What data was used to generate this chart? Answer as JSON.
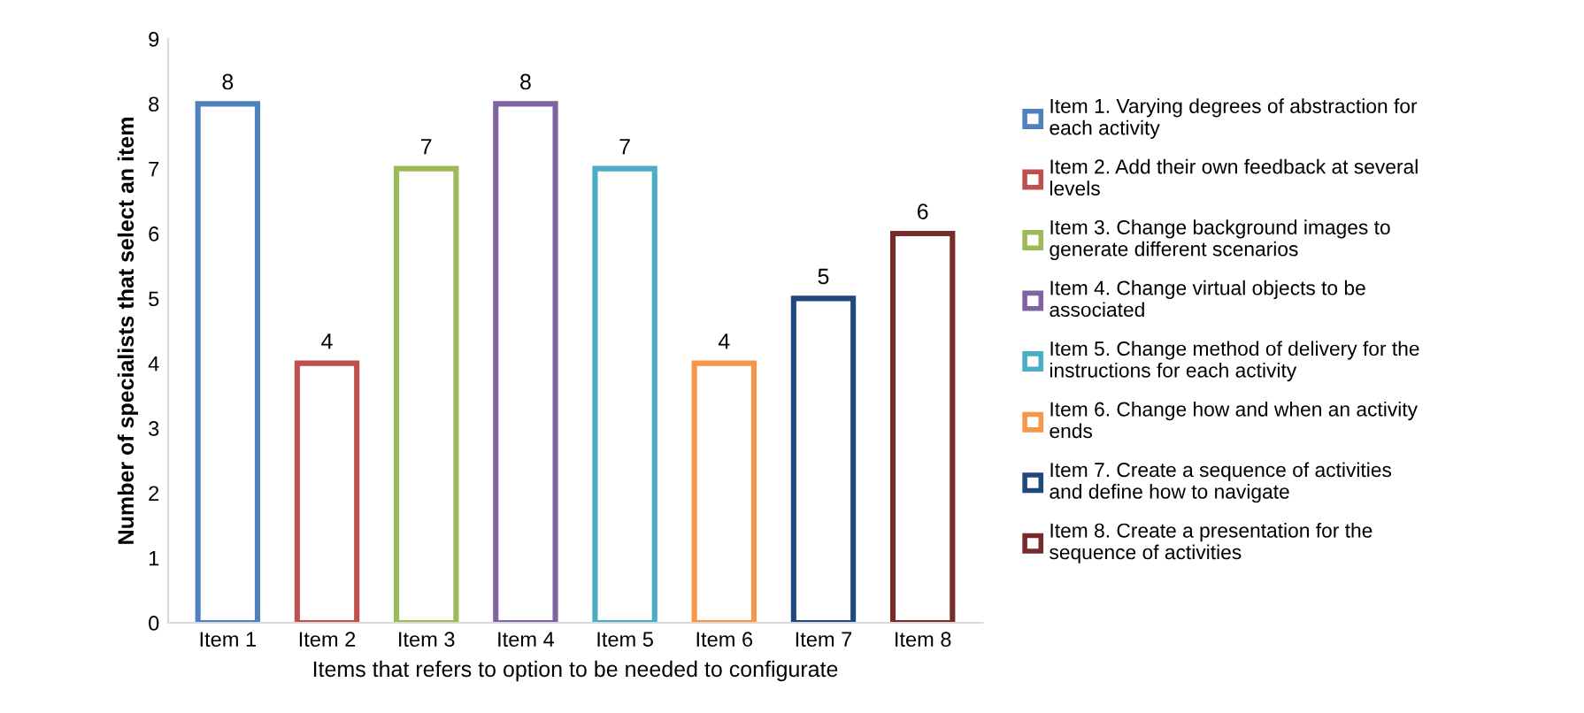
{
  "chart_data": {
    "type": "bar",
    "xlabel": "Items that refers to option to be needed to configurate",
    "ylabel": "Number of specialists that select an item",
    "categories": [
      "Item 1",
      "Item 2",
      "Item 3",
      "Item 4",
      "Item 5",
      "Item 6",
      "Item 7",
      "Item 8"
    ],
    "series": [
      {
        "name": "Item 1. Varying degrees of abstraction for each activity",
        "color": "#4f81bd",
        "values": [
          8,
          null,
          null,
          null,
          null,
          null,
          null,
          null
        ]
      },
      {
        "name": "Item 2. Add their own feedback at several levels",
        "color": "#c0504d",
        "values": [
          null,
          4,
          null,
          null,
          null,
          null,
          null,
          null
        ]
      },
      {
        "name": "Item 3. Change background images to generate different scenarios",
        "color": "#9bbb59",
        "values": [
          null,
          null,
          7,
          null,
          null,
          null,
          null,
          null
        ]
      },
      {
        "name": "Item 4. Change virtual objects to be associated",
        "color": "#8064a2",
        "values": [
          null,
          null,
          null,
          8,
          null,
          null,
          null,
          null
        ]
      },
      {
        "name": "Item 5. Change method of delivery for the instructions for each activity",
        "color": "#4bacc6",
        "values": [
          null,
          null,
          null,
          null,
          7,
          null,
          null,
          null
        ]
      },
      {
        "name": "Item 6. Change how and when an activity ends",
        "color": "#f79646",
        "values": [
          null,
          null,
          null,
          null,
          null,
          4,
          null,
          null
        ]
      },
      {
        "name": "Item 7. Create a sequence of activities and define how to navigate",
        "color": "#1f497d",
        "values": [
          null,
          null,
          null,
          null,
          null,
          null,
          5,
          null
        ]
      },
      {
        "name": "Item 8. Create a presentation for the sequence of activities",
        "color": "#772c2a",
        "values": [
          null,
          null,
          null,
          null,
          null,
          null,
          null,
          6
        ]
      }
    ],
    "ylim": [
      0,
      9
    ],
    "yticks": [
      0,
      1,
      2,
      3,
      4,
      5,
      6,
      7,
      8,
      9
    ],
    "grid": false,
    "data_labels": true,
    "legend": "right"
  }
}
